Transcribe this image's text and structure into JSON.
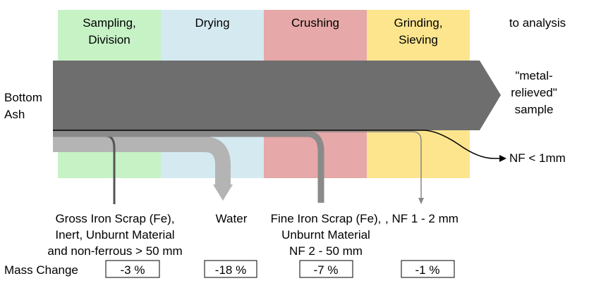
{
  "input": {
    "label": "Bottom\nAsh"
  },
  "stages": [
    {
      "label": "Sampling,\nDivision"
    },
    {
      "label": "Drying"
    },
    {
      "label": "Crushing"
    },
    {
      "label": "Grinding,\nSieving"
    }
  ],
  "destination": {
    "label": "to analysis"
  },
  "product": {
    "label": "\"metal-\nrelieved\"\nsample"
  },
  "fine_output": {
    "label": "NF < 1mm"
  },
  "outputs": [
    {
      "label": "Gross Iron Scrap (Fe),\nInert, Unburnt Material\nand non-ferrous > 50 mm"
    },
    {
      "label": "Water"
    },
    {
      "label": "Fine Iron Scrap (Fe),\nUnburnt Material\nNF 2 - 50 mm"
    },
    {
      "label": ", NF 1 - 2 mm"
    }
  ],
  "mass_change": {
    "label": "Mass Change",
    "values": [
      "-3 %",
      "-18 %",
      "-7 %",
      "-1 %"
    ]
  }
}
